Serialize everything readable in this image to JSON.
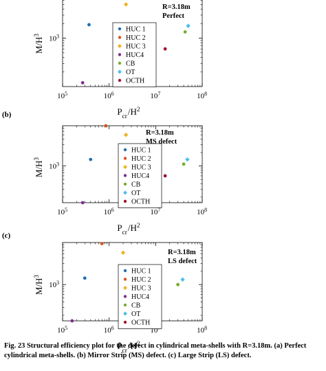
{
  "chart_data": [
    {
      "type": "scatter",
      "panel_label": "",
      "annotation": [
        "R=3.18m",
        "Perfect"
      ],
      "xlabel": "P_cr/H^2",
      "ylabel": "M/H^3",
      "xscale": "log",
      "yscale": "log",
      "xlim": [
        100000,
        100000000
      ],
      "ylim": [
        100,
        8000
      ],
      "xticks": [
        100000,
        1000000,
        10000000,
        100000000
      ],
      "xtick_labels": [
        "10^5",
        "10^6",
        "10^7",
        "10^8"
      ],
      "yticks": [
        1000
      ],
      "ytick_labels": [
        "10^3"
      ],
      "legend_position": "center",
      "series": [
        {
          "name": "HUC 1",
          "color": "#1f6fb2",
          "marker": "circle",
          "points": [
            [
              370000,
              1900
            ]
          ]
        },
        {
          "name": "HUC 2",
          "color": "#d9541e",
          "marker": "circle",
          "points": []
        },
        {
          "name": "HUC 3",
          "color": "#f0b323",
          "marker": "diamond",
          "points": [
            [
              2300000,
              5000
            ]
          ]
        },
        {
          "name": "HUC4",
          "color": "#7e2f8e",
          "marker": "circle",
          "points": [
            [
              270000,
              120
            ]
          ]
        },
        {
          "name": "CB",
          "color": "#77ac30",
          "marker": "circle",
          "points": [
            [
              43000000,
              1350
            ]
          ]
        },
        {
          "name": "OT",
          "color": "#4dbeee",
          "marker": "diamond",
          "points": [
            [
              50000000,
              1800
            ]
          ]
        },
        {
          "name": "OCTH",
          "color": "#a2142f",
          "marker": "circle",
          "points": [
            [
              16000000,
              600
            ]
          ]
        }
      ]
    },
    {
      "type": "scatter",
      "panel_label": "(b)",
      "annotation": [
        "R=3.18m",
        "MS defect"
      ],
      "xlabel": "P_cr/H^2",
      "ylabel": "M/H^3",
      "xscale": "log",
      "yscale": "log",
      "xlim": [
        100000,
        100000000
      ],
      "ylim": [
        150,
        8000
      ],
      "xticks": [
        100000,
        1000000,
        10000000,
        100000000
      ],
      "xtick_labels": [
        "10^5",
        "10^6",
        "10^7",
        "10^8"
      ],
      "yticks": [
        1000
      ],
      "ytick_labels": [
        "10^3"
      ],
      "legend_position": "center",
      "series": [
        {
          "name": "HUC 1",
          "color": "#1f6fb2",
          "marker": "circle",
          "points": [
            [
              400000,
              1400
            ]
          ]
        },
        {
          "name": "HUC 2",
          "color": "#d9541e",
          "marker": "circle",
          "points": [
            [
              850000,
              8000
            ]
          ]
        },
        {
          "name": "HUC 3",
          "color": "#f0b323",
          "marker": "diamond",
          "points": [
            [
              2300000,
              5000
            ]
          ]
        },
        {
          "name": "HUC4",
          "color": "#7e2f8e",
          "marker": "circle",
          "points": [
            [
              270000,
              150
            ]
          ]
        },
        {
          "name": "CB",
          "color": "#77ac30",
          "marker": "circle",
          "points": [
            [
              40000000,
              1100
            ]
          ]
        },
        {
          "name": "OT",
          "color": "#4dbeee",
          "marker": "diamond",
          "points": [
            [
              48000000,
              1400
            ]
          ]
        },
        {
          "name": "OCTH",
          "color": "#a2142f",
          "marker": "circle",
          "points": [
            [
              16000000,
              600
            ]
          ]
        }
      ]
    },
    {
      "type": "scatter",
      "panel_label": "(c)",
      "annotation": [
        "R=3.18m",
        "LS defect"
      ],
      "xlabel": "P_cr/H^2",
      "ylabel": "M/H^3",
      "xscale": "log",
      "yscale": "log",
      "xlim": [
        100000,
        100000000
      ],
      "ylim": [
        150,
        9000
      ],
      "xticks": [
        100000,
        1000000,
        10000000,
        100000000
      ],
      "xtick_labels": [
        "10^5",
        "10^6",
        "10^7",
        "10^8"
      ],
      "yticks": [
        1000
      ],
      "ytick_labels": [
        "10^3"
      ],
      "legend_position": "center",
      "series": [
        {
          "name": "HUC 1",
          "color": "#1f6fb2",
          "marker": "circle",
          "points": [
            [
              300000,
              1400
            ]
          ]
        },
        {
          "name": "HUC 2",
          "color": "#d9541e",
          "marker": "circle",
          "points": [
            [
              700000,
              8500
            ]
          ]
        },
        {
          "name": "HUC 3",
          "color": "#f0b323",
          "marker": "diamond",
          "points": [
            [
              2000000,
              5300
            ]
          ]
        },
        {
          "name": "HUC4",
          "color": "#7e2f8e",
          "marker": "circle",
          "points": [
            [
              160000,
              150
            ]
          ]
        },
        {
          "name": "CB",
          "color": "#77ac30",
          "marker": "circle",
          "points": [
            [
              30000000,
              1000
            ]
          ]
        },
        {
          "name": "OT",
          "color": "#4dbeee",
          "marker": "diamond",
          "points": [
            [
              38000000,
              1300
            ]
          ]
        },
        {
          "name": "OCTH",
          "color": "#a2142f",
          "marker": "circle",
          "points": [
            [
              12000000,
              500
            ]
          ]
        }
      ]
    }
  ],
  "caption": {
    "text": "Fig. 23 Structural efficiency plot for the defect in cylindrical meta-shells with R=3.18m. (a) Perfect cylindrical meta-shells. (b) Mirror Strip (MS) defect. (c) Large Strip (LS) defect."
  }
}
